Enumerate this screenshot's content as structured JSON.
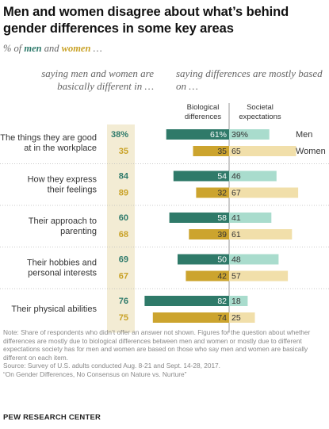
{
  "title": "Men and women disagree about what’s behind gender differences in some key areas",
  "subtitle": {
    "prefix": "% of ",
    "men": "men",
    "and": " and ",
    "women": "women",
    "suffix": " …"
  },
  "left_header": "saying men and women are basically different in …",
  "right_header": "saying differences are mostly based on …",
  "col_bio": "Biological differences",
  "col_soc": "Societal expectations",
  "colors": {
    "men_dark": "#2f7a69",
    "men_light": "#a9dccd",
    "women_dark": "#cca42e",
    "women_light": "#f1dfaa",
    "men_text": "#2e7a6b",
    "women_text": "#c9a227",
    "band": "#f3ecd4"
  },
  "chart_data": {
    "type": "bar",
    "legend": [
      "Men",
      "Women"
    ],
    "categories": [
      "The things they are good at in the workplace",
      "How they express their feelings",
      "Their approach to parenting",
      "Their hobbies and personal interests",
      "Their physical abilities"
    ],
    "category_lines": [
      [
        "The things they are good",
        "at in the workplace"
      ],
      [
        "How they express",
        "their feelings"
      ],
      [
        "Their approach to",
        "parenting"
      ],
      [
        "Their hobbies and",
        "personal interests"
      ],
      [
        "Their physical abilities"
      ]
    ],
    "different": {
      "men": [
        "38%",
        "84",
        "60",
        "69",
        "76"
      ],
      "women": [
        "35",
        "89",
        "68",
        "67",
        "75"
      ]
    },
    "series": [
      {
        "name": "Men",
        "biological": [
          61,
          54,
          58,
          50,
          82
        ],
        "societal": [
          39,
          46,
          41,
          48,
          18
        ],
        "bio_labels": [
          "61%",
          "54",
          "58",
          "50",
          "82"
        ],
        "soc_labels": [
          "39%",
          "46",
          "41",
          "48",
          "18"
        ]
      },
      {
        "name": "Women",
        "biological": [
          35,
          32,
          39,
          42,
          74
        ],
        "societal": [
          65,
          67,
          61,
          57,
          25
        ],
        "bio_labels": [
          "35",
          "32",
          "39",
          "42",
          "74"
        ],
        "soc_labels": [
          "65",
          "67",
          "61",
          "57",
          "25"
        ]
      }
    ]
  },
  "notes": [
    "Note: Share of respondents who didn’t offer an answer not shown. Figures for the question about whether differences are mostly due to biological differences between men and women or mostly due to different expectations society has for men and women are based on those who say men and women are basically different on each item.",
    "Source: Survey of U.S. adults conducted Aug. 8-21 and Sept. 14-28, 2017.",
    "“On Gender Differences, No Consensus on Nature vs. Nurture”"
  ],
  "brand": "PEW RESEARCH CENTER"
}
